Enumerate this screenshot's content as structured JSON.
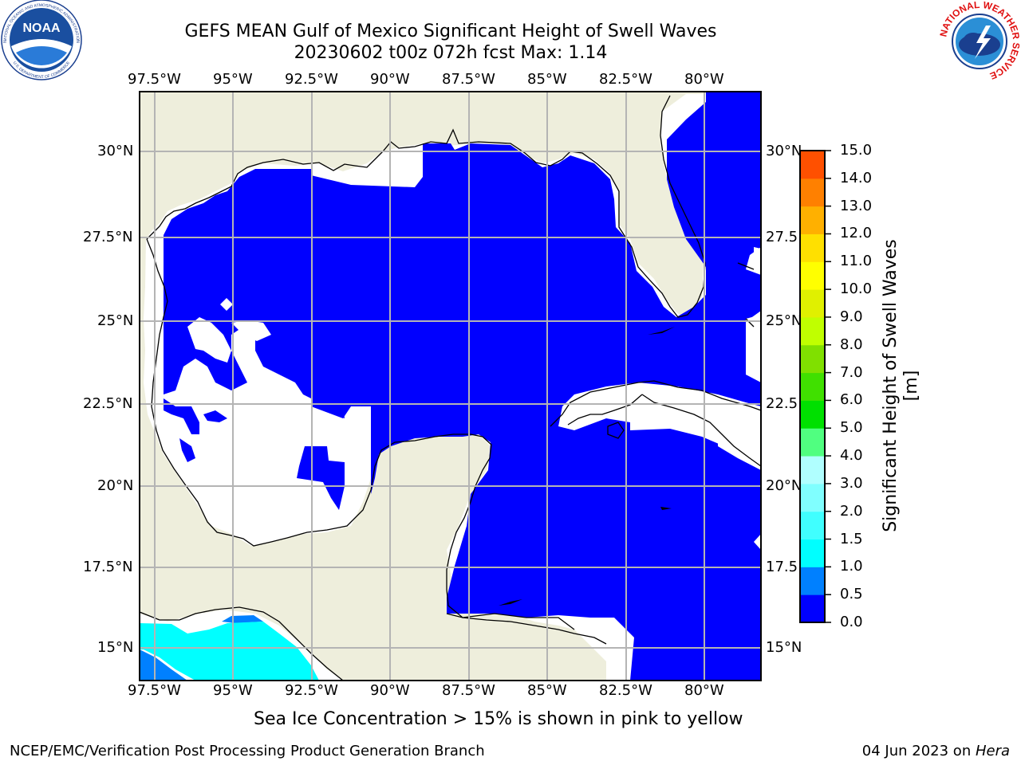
{
  "header": {
    "title_line1": "GEFS MEAN Gulf of Mexico Significant Height of Swell Waves",
    "title_line2": "20230602 t00z 072h fcst   Max: 1.14"
  },
  "map": {
    "lon_labels": [
      "97.5°W",
      "95°W",
      "92.5°W",
      "90°W",
      "87.5°W",
      "85°W",
      "82.5°W",
      "80°W"
    ],
    "lat_labels_left": [
      "30°N",
      "27.5°N",
      "25°N",
      "22.5°N",
      "20°N",
      "17.5°N",
      "15°N"
    ],
    "lat_labels_right": [
      "30°N",
      "27.5",
      "25°N",
      "22.5",
      "20°N",
      "17.5",
      "15°N"
    ],
    "grid": true,
    "colors": {
      "land": "#eeeedc",
      "ocean_low": "#0000ff",
      "gridline": "#b4b4b4"
    }
  },
  "colorbar": {
    "label": "Significant Height of Swell Waves [m]",
    "tick_labels": [
      "0.0",
      "0.5",
      "1.0",
      "1.5",
      "2.0",
      "3.0",
      "4.0",
      "5.0",
      "6.0",
      "7.0",
      "8.0",
      "9.0",
      "10.0",
      "11.0",
      "12.0",
      "13.0",
      "14.0",
      "15.0"
    ],
    "colors": [
      "#0000ff",
      "#0080ff",
      "#00ffff",
      "#40ffff",
      "#80ffff",
      "#b0ffff",
      "#50ff80",
      "#00e000",
      "#40e000",
      "#80e000",
      "#c0ff00",
      "#e0f000",
      "#ffff00",
      "#ffe000",
      "#ffb000",
      "#ff8000",
      "#ff5000",
      "#ff2000",
      "#ff0000"
    ]
  },
  "notes": {
    "ice": "Sea Ice Concentration > 15% is shown in pink to yellow"
  },
  "footer": {
    "left": "NCEP/EMC/Verification Post Processing Product Generation Branch",
    "right_date": "04 Jun 2023 on ",
    "right_host": "Hera"
  },
  "logos": {
    "noaa_text": "NOAA",
    "noaa_ring": "NATIONAL OCEANIC AND ATMOSPHERIC ADMINISTRATION",
    "noaa_bottom": "U.S. DEPARTMENT OF COMMERCE",
    "nws_ring": "NATIONAL WEATHER SERVICE"
  }
}
